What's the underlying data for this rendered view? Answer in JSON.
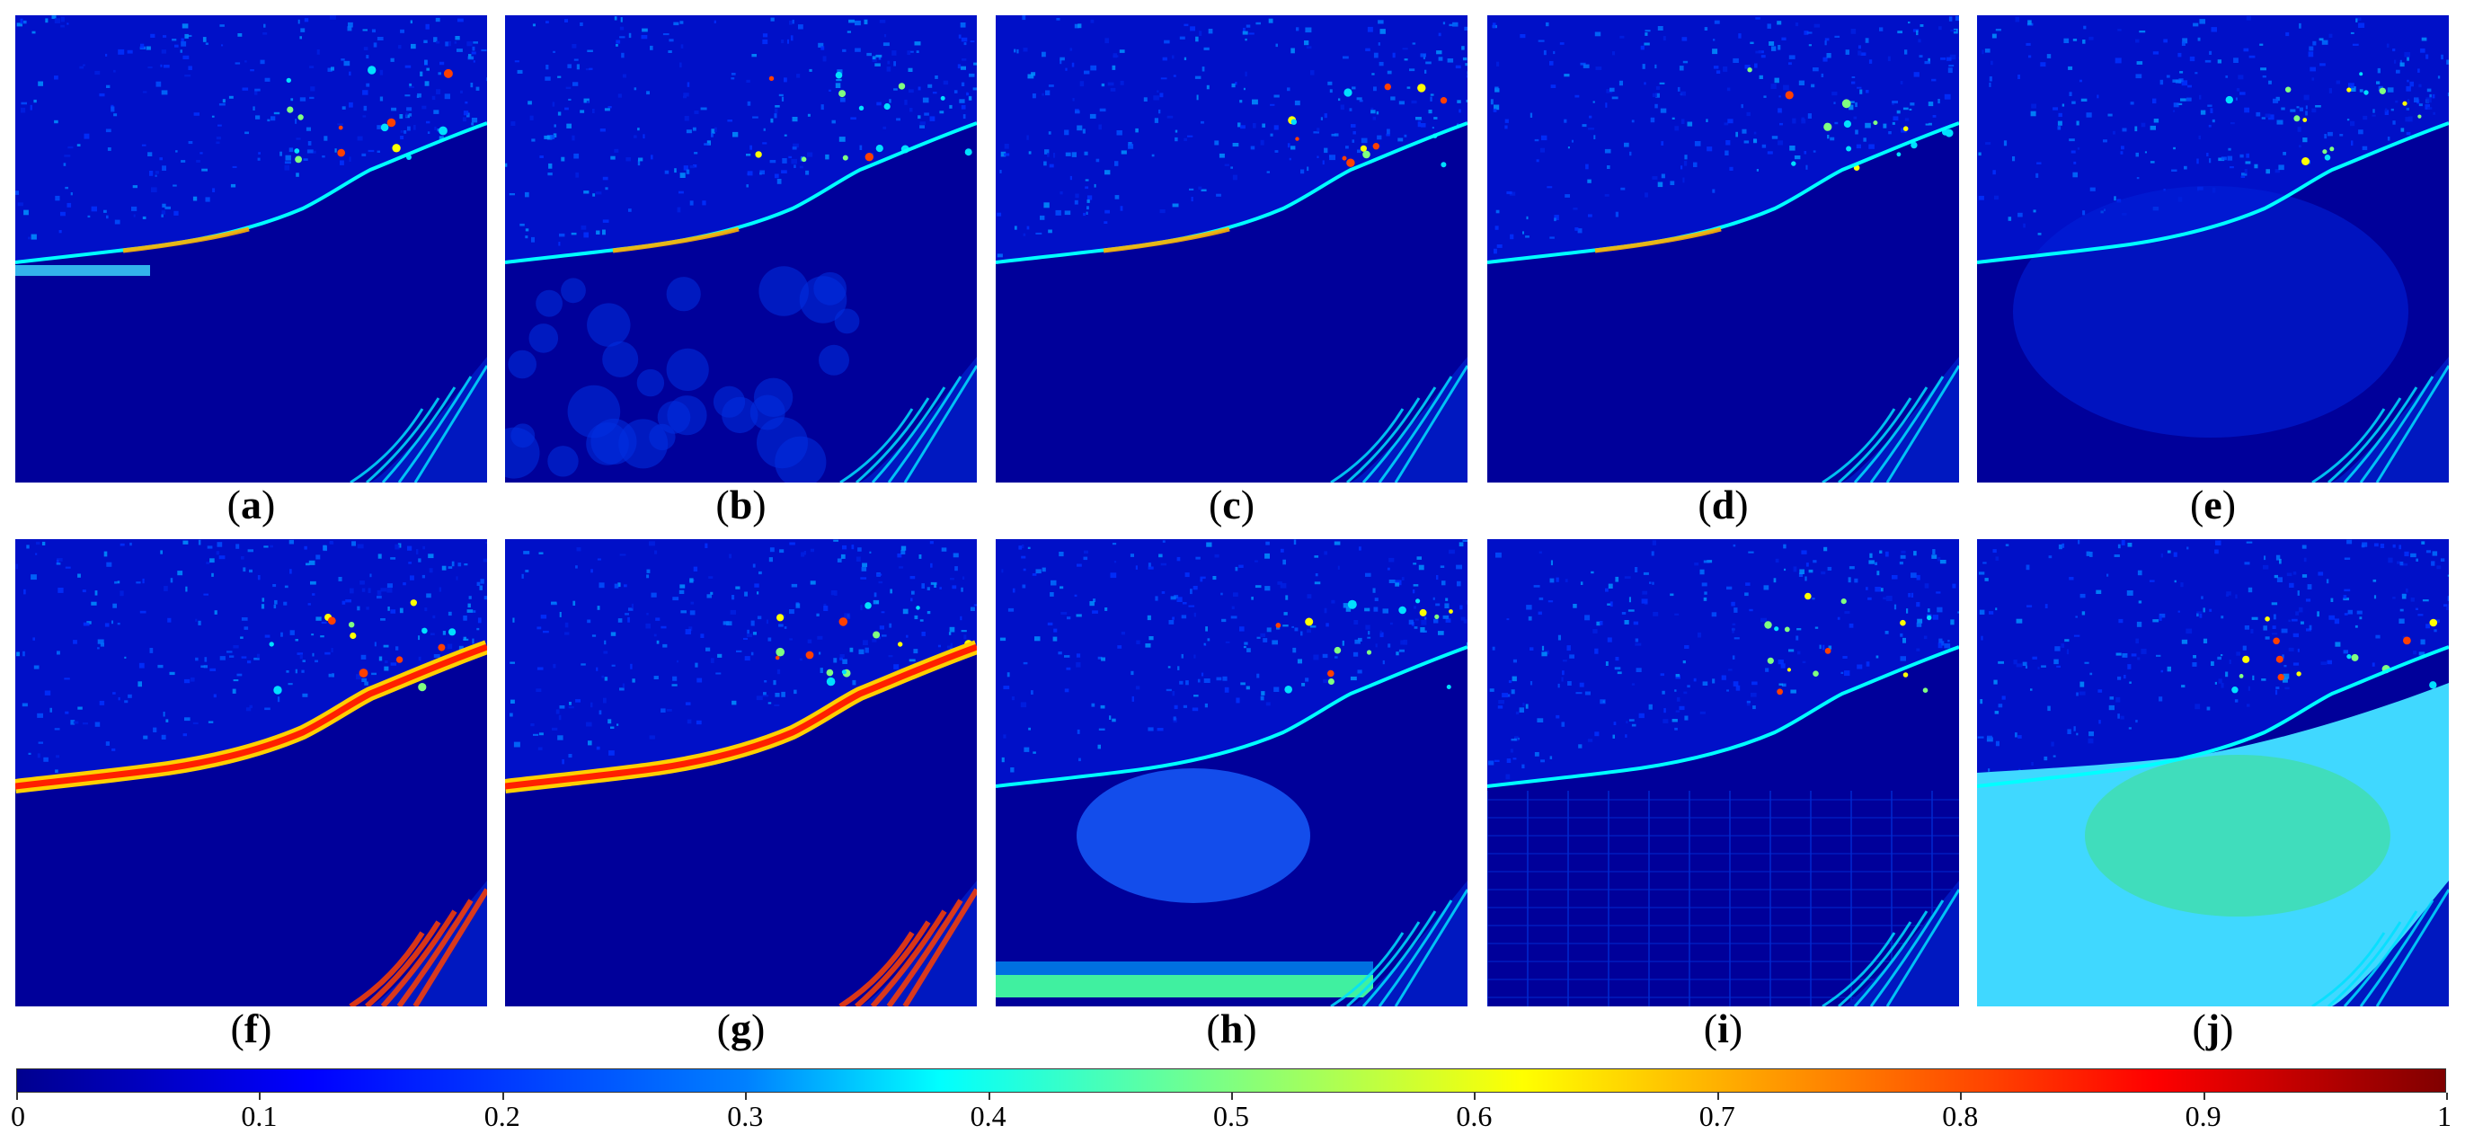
{
  "panels": [
    {
      "id": "a",
      "label": "a",
      "variant": "base",
      "bright_strip": true
    },
    {
      "id": "b",
      "label": "b",
      "variant": "blobs"
    },
    {
      "id": "c",
      "label": "c",
      "variant": "base"
    },
    {
      "id": "d",
      "label": "d",
      "variant": "base"
    },
    {
      "id": "e",
      "label": "e",
      "variant": "soft"
    },
    {
      "id": "f",
      "label": "f",
      "variant": "thick"
    },
    {
      "id": "g",
      "label": "g",
      "variant": "thick"
    },
    {
      "id": "h",
      "label": "h",
      "variant": "haze_bottom"
    },
    {
      "id": "i",
      "label": "i",
      "variant": "grid"
    },
    {
      "id": "j",
      "label": "j",
      "variant": "cyan_fill"
    }
  ],
  "colorbar": {
    "min": 0,
    "max": 1,
    "tick_labels": [
      "0",
      "0.1",
      "0.2",
      "0.3",
      "0.4",
      "0.5",
      "0.6",
      "0.7",
      "0.8",
      "0.9",
      "1"
    ],
    "colors": [
      "#00008f",
      "#0000ff",
      "#0080ff",
      "#00ffff",
      "#80ff80",
      "#ffff00",
      "#ff8000",
      "#ff0000",
      "#800000"
    ]
  }
}
